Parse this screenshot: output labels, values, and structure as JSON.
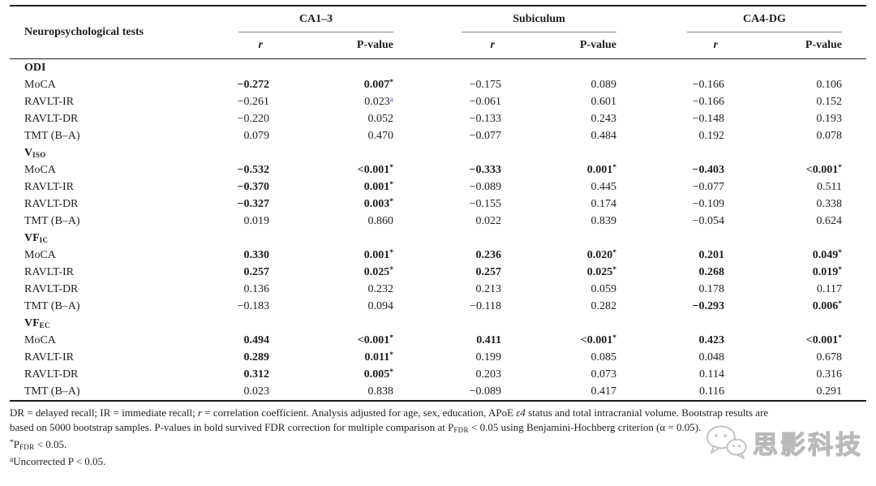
{
  "colors": {
    "text": "#1f1f1f",
    "heavy_rule": "#1c1c1c",
    "group_rule": "#8a8a8a",
    "footnote_link_blue": "#4343e0",
    "watermark_gray": "#b9b9b9"
  },
  "header": {
    "tests_label": "Neuropsychological tests",
    "groups": [
      "CA1–3",
      "Subiculum",
      "CA4-DG"
    ],
    "r_label": "r",
    "p_label": "P-value"
  },
  "sections": [
    {
      "label_main": "ODI",
      "label_sub": "",
      "rows": [
        {
          "test": "MoCA",
          "cells": [
            {
              "v": "−0.272",
              "b": 1
            },
            {
              "v": "0.007",
              "s": "*",
              "b": 1
            },
            {
              "v": "−0.175"
            },
            {
              "v": "0.089"
            },
            {
              "v": "−0.166"
            },
            {
              "v": "0.106"
            }
          ]
        },
        {
          "test": "RAVLT-IR",
          "cells": [
            {
              "v": "−0.261"
            },
            {
              "v": "0.023",
              "s": "a",
              "blue": 1
            },
            {
              "v": "−0.061"
            },
            {
              "v": "0.601"
            },
            {
              "v": "−0.166"
            },
            {
              "v": "0.152"
            }
          ]
        },
        {
          "test": "RAVLT-DR",
          "cells": [
            {
              "v": "−0.220"
            },
            {
              "v": "0.052"
            },
            {
              "v": "−0.133"
            },
            {
              "v": "0.243"
            },
            {
              "v": "−0.148"
            },
            {
              "v": "0.193"
            }
          ]
        },
        {
          "test": "TMT (B–A)",
          "cells": [
            {
              "v": "0.079"
            },
            {
              "v": "0.470"
            },
            {
              "v": "−0.077"
            },
            {
              "v": "0.484"
            },
            {
              "v": "0.192"
            },
            {
              "v": "0.078"
            }
          ]
        }
      ]
    },
    {
      "label_main": "V",
      "label_sub": "ISO",
      "rows": [
        {
          "test": "MoCA",
          "cells": [
            {
              "v": "−0.532",
              "b": 1
            },
            {
              "v": "<0.001",
              "s": "*",
              "b": 1
            },
            {
              "v": "−0.333",
              "b": 1
            },
            {
              "v": "0.001",
              "s": "*",
              "b": 1
            },
            {
              "v": "−0.403",
              "b": 1
            },
            {
              "v": "<0.001",
              "s": "*",
              "b": 1
            }
          ]
        },
        {
          "test": "RAVLT-IR",
          "cells": [
            {
              "v": "−0.370",
              "b": 1
            },
            {
              "v": "0.001",
              "s": "*",
              "b": 1
            },
            {
              "v": "−0.089"
            },
            {
              "v": "0.445"
            },
            {
              "v": "−0.077"
            },
            {
              "v": "0.511"
            }
          ]
        },
        {
          "test": "RAVLT-DR",
          "cells": [
            {
              "v": "−0.327",
              "b": 1
            },
            {
              "v": "0.003",
              "s": "*",
              "b": 1
            },
            {
              "v": "−0.155"
            },
            {
              "v": "0.174"
            },
            {
              "v": "−0.109"
            },
            {
              "v": "0.338"
            }
          ]
        },
        {
          "test": "TMT (B–A)",
          "cells": [
            {
              "v": "0.019"
            },
            {
              "v": "0.860"
            },
            {
              "v": "0.022"
            },
            {
              "v": "0.839"
            },
            {
              "v": "−0.054"
            },
            {
              "v": "0.624"
            }
          ]
        }
      ]
    },
    {
      "label_main": "VF",
      "label_sub": "IC",
      "rows": [
        {
          "test": "MoCA",
          "cells": [
            {
              "v": "0.330",
              "b": 1
            },
            {
              "v": "0.001",
              "s": "*",
              "b": 1
            },
            {
              "v": "0.236",
              "b": 1
            },
            {
              "v": "0.020",
              "s": "*",
              "b": 1
            },
            {
              "v": "0.201",
              "b": 1
            },
            {
              "v": "0.049",
              "s": "*",
              "b": 1
            }
          ]
        },
        {
          "test": "RAVLT-IR",
          "cells": [
            {
              "v": "0.257",
              "b": 1
            },
            {
              "v": "0.025",
              "s": "*",
              "b": 1
            },
            {
              "v": "0.257",
              "b": 1
            },
            {
              "v": "0.025",
              "s": "*",
              "b": 1
            },
            {
              "v": "0.268",
              "b": 1
            },
            {
              "v": "0.019",
              "s": "*",
              "b": 1
            }
          ]
        },
        {
          "test": "RAVLT-DR",
          "cells": [
            {
              "v": "0.136"
            },
            {
              "v": "0.232"
            },
            {
              "v": "0.213"
            },
            {
              "v": "0.059"
            },
            {
              "v": "0.178"
            },
            {
              "v": "0.117"
            }
          ]
        },
        {
          "test": "TMT (B–A)",
          "cells": [
            {
              "v": "−0.183"
            },
            {
              "v": "0.094"
            },
            {
              "v": "−0.118"
            },
            {
              "v": "0.282"
            },
            {
              "v": "−0.293",
              "b": 1
            },
            {
              "v": "0.006",
              "s": "*",
              "b": 1
            }
          ]
        }
      ]
    },
    {
      "label_main": "VF",
      "label_sub": "EC",
      "rows": [
        {
          "test": "MoCA",
          "cells": [
            {
              "v": "0.494",
              "b": 1
            },
            {
              "v": "<0.001",
              "s": "*",
              "b": 1
            },
            {
              "v": "0.411",
              "b": 1
            },
            {
              "v": "<0.001",
              "s": "*",
              "b": 1
            },
            {
              "v": "0.423",
              "b": 1
            },
            {
              "v": "<0.001",
              "s": "*",
              "b": 1
            }
          ]
        },
        {
          "test": "RAVLT-IR",
          "cells": [
            {
              "v": "0.289",
              "b": 1
            },
            {
              "v": "0.011",
              "s": "*",
              "b": 1
            },
            {
              "v": "0.199"
            },
            {
              "v": "0.085"
            },
            {
              "v": "0.048"
            },
            {
              "v": "0.678"
            }
          ]
        },
        {
          "test": "RAVLT-DR",
          "cells": [
            {
              "v": "0.312",
              "b": 1
            },
            {
              "v": "0.005",
              "s": "*",
              "b": 1
            },
            {
              "v": "0.203"
            },
            {
              "v": "0.073"
            },
            {
              "v": "0.114"
            },
            {
              "v": "0.316"
            }
          ]
        },
        {
          "test": "TMT (B–A)",
          "cells": [
            {
              "v": "0.023"
            },
            {
              "v": "0.838"
            },
            {
              "v": "−0.089"
            },
            {
              "v": "0.417"
            },
            {
              "v": "0.116"
            },
            {
              "v": "0.291"
            }
          ]
        }
      ]
    }
  ],
  "footnotes": [
    {
      "name": "footnote-definitions-line1",
      "segments": [
        {
          "t": "DR = delayed recall; IR = immediate recall; "
        },
        {
          "t": "r",
          "st": "i"
        },
        {
          "t": " = correlation coefficient. Analysis adjusted for age, sex, education, APoE "
        },
        {
          "t": "ε4",
          "st": "i"
        },
        {
          "t": " status and total intracranial volume. Bootstrap results are"
        }
      ]
    },
    {
      "name": "footnote-definitions-line2",
      "segments": [
        {
          "t": "based on 5000 bootstrap samples. P-values in bold survived FDR correction for multiple comparison at P"
        },
        {
          "t": "FDR",
          "st": "sub"
        },
        {
          "t": " < 0.05 using Benjamini-Hochberg criterion (α = 0.05)."
        }
      ]
    },
    {
      "name": "footnote-star",
      "segments": [
        {
          "t": "*",
          "st": "sup"
        },
        {
          "t": "P"
        },
        {
          "t": "FDR",
          "st": "sub"
        },
        {
          "t": " < 0.05."
        }
      ]
    },
    {
      "name": "footnote-a",
      "segments": [
        {
          "t": "a",
          "st": "sup"
        },
        {
          "t": "Uncorrected P < 0.05."
        }
      ]
    }
  ],
  "watermark": {
    "text": "思影科技",
    "icon": "wechat-chat-bubbles"
  }
}
